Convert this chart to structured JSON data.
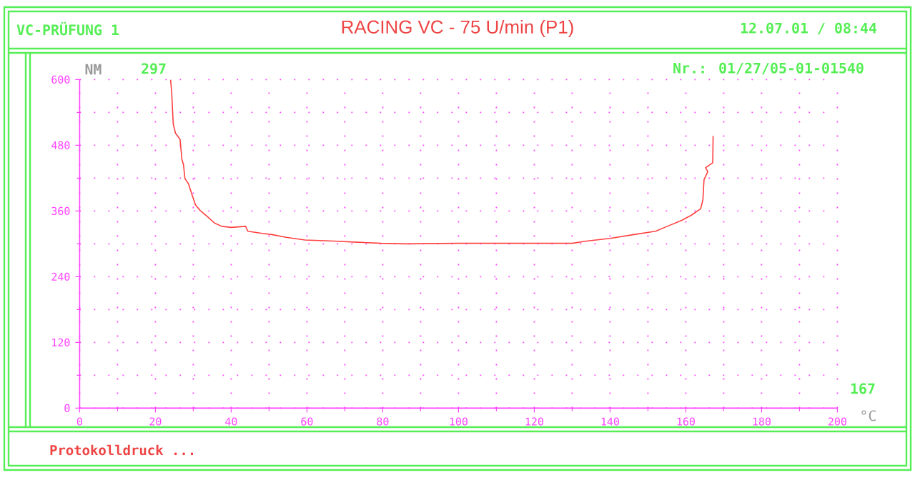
{
  "chart_data": {
    "type": "line",
    "title": "RACING VC - 75 U/min (P1)",
    "ylabel": "NM",
    "xlabel": "°C",
    "annotations": [
      "VC-PRÜFUNG 1",
      "12.07.01 / 08:44",
      "297",
      "Nr.: 01/27/05-01-01540",
      "167",
      "Protokolldruck ..."
    ],
    "x": [
      24.0,
      24.3,
      24.7,
      25.3,
      26.5,
      27.0,
      27.4,
      27.8,
      28.7,
      29.7,
      30.6,
      31.8,
      33.7,
      35.6,
      37.5,
      40,
      43.8,
      44.4,
      48.2,
      50.7,
      54.5,
      59.5,
      67,
      73.3,
      79.6,
      86,
      100,
      130,
      133.8,
      140,
      146.3,
      152,
      155.1,
      158.9,
      161.4,
      163.9,
      164.5,
      164.8,
      165.8,
      165.2,
      167.1,
      167.2
    ],
    "values": [
      600,
      576,
      519,
      502,
      491,
      454,
      445,
      419,
      410,
      389,
      371,
      361,
      350,
      338,
      332,
      330,
      332,
      323,
      319,
      317,
      312,
      307,
      305,
      303,
      301,
      300,
      301,
      301,
      305,
      310,
      317,
      323,
      332,
      343,
      352,
      364,
      380,
      417,
      432,
      439,
      448,
      497
    ],
    "color": "#ff4040",
    "xlim": [
      0,
      200
    ],
    "ylim": [
      0,
      600
    ],
    "xticks": [
      0,
      20,
      40,
      60,
      80,
      100,
      120,
      140,
      160,
      180,
      200
    ],
    "yticks": [
      0,
      120,
      240,
      360,
      480,
      600
    ],
    "grid": true
  }
}
